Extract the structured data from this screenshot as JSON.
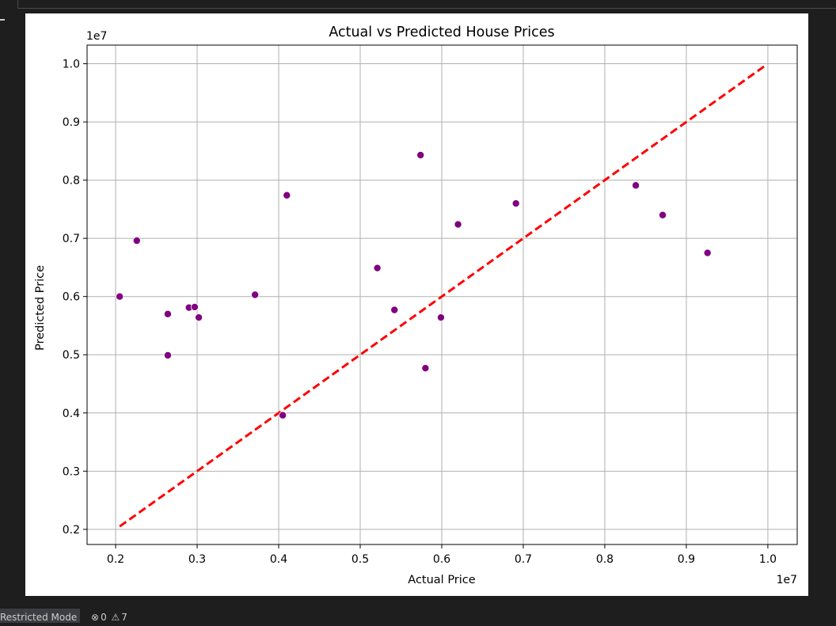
{
  "statusbar": {
    "restricted_mode": "Restricted Mode",
    "errors_icon": "error-circle-icon",
    "errors_count": "0",
    "warnings_icon": "warning-triangle-icon",
    "warnings_count": "7"
  },
  "colors": {
    "points": "#800080",
    "diagonal": "#ff0000",
    "grid": "#b0b0b0",
    "background": "#ffffff"
  },
  "chart_data": {
    "type": "scatter",
    "title": "Actual vs Predicted House Prices",
    "xlabel": "Actual Price",
    "ylabel": "Predicted Price",
    "x_offset_label": "1e7",
    "y_offset_label": "1e7",
    "xlim": [
      0.165,
      1.036
    ],
    "ylim": [
      0.174,
      1.032
    ],
    "xticks": [
      0.2,
      0.3,
      0.4,
      0.5,
      0.6,
      0.7,
      0.8,
      0.9,
      1.0
    ],
    "xtick_labels": [
      "0.2",
      "0.3",
      "0.4",
      "0.5",
      "0.6",
      "0.7",
      "0.8",
      "0.9",
      "1.0"
    ],
    "yticks": [
      0.2,
      0.3,
      0.4,
      0.5,
      0.6,
      0.7,
      0.8,
      0.9,
      1.0
    ],
    "ytick_labels": [
      "0.2",
      "0.3",
      "0.4",
      "0.5",
      "0.6",
      "0.7",
      "0.8",
      "0.9",
      "1.0"
    ],
    "grid": true,
    "series": [
      {
        "style": "scatter",
        "color": "#800080",
        "points": [
          [
            0.205,
            0.6
          ],
          [
            0.226,
            0.696
          ],
          [
            0.264,
            0.57
          ],
          [
            0.264,
            0.499
          ],
          [
            0.29,
            0.581
          ],
          [
            0.297,
            0.582
          ],
          [
            0.302,
            0.564
          ],
          [
            0.371,
            0.603
          ],
          [
            0.405,
            0.396
          ],
          [
            0.41,
            0.774
          ],
          [
            0.521,
            0.649
          ],
          [
            0.542,
            0.577
          ],
          [
            0.574,
            0.843
          ],
          [
            0.58,
            0.477
          ],
          [
            0.599,
            0.564
          ],
          [
            0.62,
            0.724
          ],
          [
            0.691,
            0.76
          ],
          [
            0.838,
            0.791
          ],
          [
            0.871,
            0.74
          ],
          [
            0.926,
            0.675
          ]
        ]
      },
      {
        "style": "dashed-line",
        "color": "#ff0000",
        "points": [
          [
            0.205,
            0.205
          ],
          [
            0.996,
            0.996
          ]
        ]
      }
    ]
  }
}
